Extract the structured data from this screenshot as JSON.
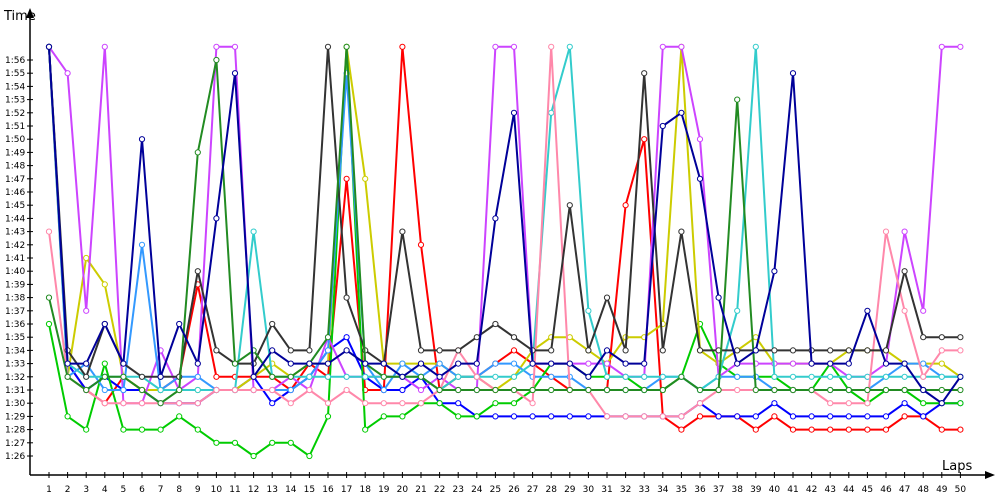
{
  "chart_data": {
    "type": "line",
    "xlabel": "Laps",
    "ylabel": "Time",
    "x_ticks": [
      "1",
      "2",
      "3",
      "4",
      "5",
      "6",
      "7",
      "8",
      "9",
      "10",
      "11",
      "12",
      "13",
      "14",
      "15",
      "16",
      "17",
      "18",
      "19",
      "20",
      "21",
      "22",
      "23",
      "24",
      "25",
      "26",
      "27",
      "28",
      "29",
      "30",
      "31",
      "32",
      "33",
      "34",
      "35",
      "36",
      "37",
      "38",
      "39",
      "40",
      "41",
      "42",
      "43",
      "44",
      "45",
      "46",
      "47",
      "48",
      "49",
      "50"
    ],
    "y_ticks": [
      "1:26",
      "1:27",
      "1:28",
      "1:29",
      "1:30",
      "1:31",
      "1:32",
      "1:33",
      "1:34",
      "1:35",
      "1:36",
      "1:37",
      "1:38",
      "1:39",
      "1:40",
      "1:41",
      "1:42",
      "1:43",
      "1:44",
      "1:45",
      "1:46",
      "1:47",
      "1:48",
      "1:49",
      "1:50",
      "1:51",
      "1:52",
      "1:53",
      "1:54",
      "1:55",
      "1:56"
    ],
    "y_unit": "seconds",
    "ylim": [
      85,
      117
    ],
    "xlim": [
      0,
      51
    ],
    "grid": "none",
    "legend": "none",
    "series": [
      {
        "color": "#ff0000",
        "values": [
          117,
          93,
          91,
          90,
          92,
          91,
          91,
          92,
          99,
          92,
          92,
          92,
          92,
          91,
          93,
          92,
          107,
          91,
          91,
          117,
          102,
          91,
          92,
          92,
          93,
          94,
          93,
          92,
          91,
          91,
          91,
          105,
          110,
          89,
          88,
          89,
          89,
          89,
          88,
          89,
          88,
          88,
          88,
          88,
          88,
          88,
          89,
          89,
          88,
          88
        ]
      },
      {
        "color": "#0000ff",
        "values": [
          117,
          93,
          91,
          92,
          91,
          91,
          90,
          90,
          90,
          91,
          91,
          92,
          90,
          91,
          92,
          94,
          95,
          92,
          91,
          91,
          92,
          90,
          90,
          89,
          89,
          89,
          89,
          89,
          89,
          89,
          89,
          89,
          89,
          89,
          89,
          90,
          89,
          89,
          89,
          90,
          89,
          89,
          89,
          89,
          89,
          89,
          90,
          89,
          90,
          90
        ]
      },
      {
        "color": "#00cc00",
        "values": [
          96,
          89,
          88,
          93,
          88,
          88,
          88,
          89,
          88,
          87,
          87,
          86,
          87,
          87,
          86,
          89,
          117,
          88,
          89,
          89,
          90,
          90,
          89,
          89,
          90,
          90,
          91,
          93,
          93,
          92,
          92,
          92,
          91,
          91,
          92,
          96,
          93,
          92,
          92,
          92,
          91,
          91,
          93,
          91,
          90,
          91,
          91,
          90,
          90,
          90
        ]
      },
      {
        "color": "#cccc00",
        "values": [
          117,
          92,
          101,
          99,
          92,
          91,
          91,
          91,
          91,
          91,
          91,
          92,
          93,
          92,
          93,
          93,
          117,
          107,
          93,
          93,
          93,
          93,
          92,
          92,
          91,
          92,
          94,
          95,
          95,
          94,
          93,
          95,
          95,
          96,
          117,
          94,
          93,
          94,
          95,
          93,
          93,
          93,
          93,
          94,
          94,
          94,
          93,
          93,
          93,
          92
        ]
      },
      {
        "color": "#cc44ff",
        "values": [
          117,
          115,
          97,
          117,
          90,
          90,
          94,
          91,
          92,
          117,
          117,
          91,
          91,
          92,
          91,
          95,
          92,
          92,
          92,
          92,
          91,
          92,
          91,
          91,
          117,
          117,
          93,
          93,
          93,
          93,
          93,
          92,
          92,
          117,
          117,
          110,
          92,
          93,
          93,
          93,
          93,
          93,
          93,
          92,
          92,
          93,
          103,
          97,
          117,
          117
        ]
      },
      {
        "color": "#3399ff",
        "values": [
          117,
          92,
          93,
          91,
          91,
          102,
          91,
          92,
          92,
          91,
          91,
          91,
          91,
          91,
          92,
          94,
          115,
          93,
          91,
          93,
          92,
          93,
          92,
          92,
          93,
          93,
          92,
          92,
          92,
          91,
          91,
          91,
          91,
          92,
          92,
          91,
          92,
          92,
          92,
          91,
          91,
          91,
          91,
          91,
          91,
          92,
          93,
          93,
          92,
          92
        ]
      },
      {
        "color": "#33cccc",
        "values": [
          117,
          93,
          92,
          92,
          92,
          92,
          91,
          91,
          91,
          91,
          91,
          103,
          92,
          92,
          92,
          92,
          92,
          92,
          92,
          92,
          92,
          91,
          92,
          92,
          92,
          92,
          93,
          112,
          117,
          97,
          92,
          92,
          92,
          92,
          92,
          91,
          92,
          97,
          117,
          92,
          92,
          92,
          92,
          92,
          92,
          92,
          92,
          92,
          92,
          92
        ]
      },
      {
        "color": "#ff88aa",
        "values": [
          103,
          92,
          91,
          90,
          90,
          90,
          90,
          90,
          90,
          91,
          91,
          91,
          91,
          90,
          91,
          90,
          91,
          90,
          90,
          90,
          90,
          91,
          94,
          92,
          91,
          91,
          90,
          117,
          91,
          91,
          89,
          89,
          89,
          89,
          89,
          90,
          91,
          91,
          91,
          91,
          91,
          91,
          90,
          90,
          90,
          103,
          97,
          92,
          94,
          94
        ]
      },
      {
        "color": "#333333",
        "values": [
          117,
          94,
          92,
          96,
          93,
          92,
          92,
          92,
          100,
          94,
          93,
          93,
          96,
          94,
          94,
          117,
          98,
          94,
          93,
          103,
          94,
          94,
          94,
          95,
          96,
          95,
          94,
          94,
          105,
          94,
          98,
          94,
          115,
          94,
          103,
          94,
          94,
          94,
          94,
          94,
          94,
          94,
          94,
          94,
          94,
          94,
          100,
          95,
          95,
          95
        ]
      },
      {
        "color": "#228b22",
        "values": [
          98,
          92,
          91,
          92,
          92,
          91,
          90,
          91,
          109,
          116,
          93,
          94,
          92,
          92,
          93,
          95,
          117,
          93,
          92,
          92,
          92,
          91,
          91,
          91,
          91,
          91,
          91,
          91,
          91,
          91,
          91,
          91,
          91,
          91,
          92,
          91,
          91,
          113,
          91,
          91,
          91,
          91,
          91,
          91,
          91,
          91,
          91,
          91,
          91,
          91
        ]
      },
      {
        "color": "#000099",
        "values": [
          117,
          93,
          93,
          96,
          93,
          110,
          92,
          96,
          93,
          104,
          115,
          92,
          94,
          93,
          93,
          93,
          94,
          93,
          93,
          92,
          93,
          92,
          93,
          93,
          104,
          112,
          93,
          93,
          93,
          92,
          94,
          93,
          93,
          111,
          112,
          107,
          98,
          93,
          94,
          100,
          115,
          93,
          93,
          93,
          97,
          93,
          93,
          91,
          90,
          92
        ]
      }
    ]
  }
}
